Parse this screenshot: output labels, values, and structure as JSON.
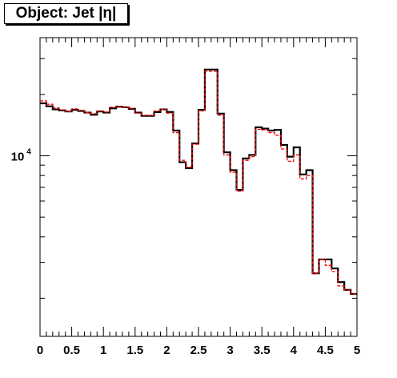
{
  "chart_data": {
    "type": "line",
    "title": "Object: Jet |η|",
    "xlabel": "",
    "ylabel": "",
    "xlim": [
      0,
      5
    ],
    "ylim": [
      1300,
      38000
    ],
    "log_y": true,
    "grid": false,
    "x_ticks": [
      "0",
      "0.5",
      "1",
      "1.5",
      "2",
      "2.5",
      "3",
      "3.5",
      "4",
      "4.5",
      "5"
    ],
    "y_tick_labels": [
      {
        "base": "10",
        "exp": "4",
        "value": 10000
      }
    ],
    "bin_edges": [
      0,
      0.1,
      0.2,
      0.3,
      0.4,
      0.5,
      0.6,
      0.7,
      0.8,
      0.9,
      1.0,
      1.1,
      1.2,
      1.3,
      1.4,
      1.5,
      1.6,
      1.7,
      1.8,
      1.9,
      2.0,
      2.1,
      2.2,
      2.3,
      2.4,
      2.5,
      2.6,
      2.7,
      2.8,
      2.9,
      3.0,
      3.1,
      3.2,
      3.3,
      3.4,
      3.5,
      3.6,
      3.7,
      3.8,
      3.9,
      4.0,
      4.1,
      4.2,
      4.3,
      4.4,
      4.5,
      4.6,
      4.7,
      4.8,
      4.9,
      5.0
    ],
    "series": [
      {
        "color": "#000000",
        "style": "solid",
        "values": [
          18100,
          17500,
          16900,
          16700,
          16500,
          16800,
          16600,
          16300,
          15900,
          16500,
          16300,
          17100,
          17400,
          17300,
          17000,
          16300,
          15700,
          15700,
          16400,
          16900,
          16400,
          13300,
          9300,
          8700,
          11500,
          16800,
          26500,
          26500,
          16100,
          10400,
          8500,
          6800,
          9700,
          10100,
          13800,
          13600,
          13300,
          13400,
          11300,
          9900,
          11000,
          8100,
          8500,
          2650,
          3100,
          3100,
          2800,
          2400,
          2200,
          2100
        ]
      },
      {
        "color": "#ff0000",
        "style": "dashed",
        "values": [
          18600,
          17900,
          17200,
          16800,
          16500,
          17000,
          16700,
          16300,
          16100,
          16600,
          16400,
          17300,
          17500,
          17300,
          17100,
          16200,
          15800,
          15800,
          16600,
          16900,
          16200,
          13000,
          9500,
          8800,
          11400,
          16600,
          26000,
          26000,
          15800,
          10100,
          8300,
          6700,
          9500,
          9900,
          13500,
          13400,
          13000,
          12600,
          10800,
          9400,
          10100,
          7700,
          8000,
          2650,
          3100,
          2900,
          2700,
          2300,
          2200,
          2100
        ]
      }
    ]
  }
}
